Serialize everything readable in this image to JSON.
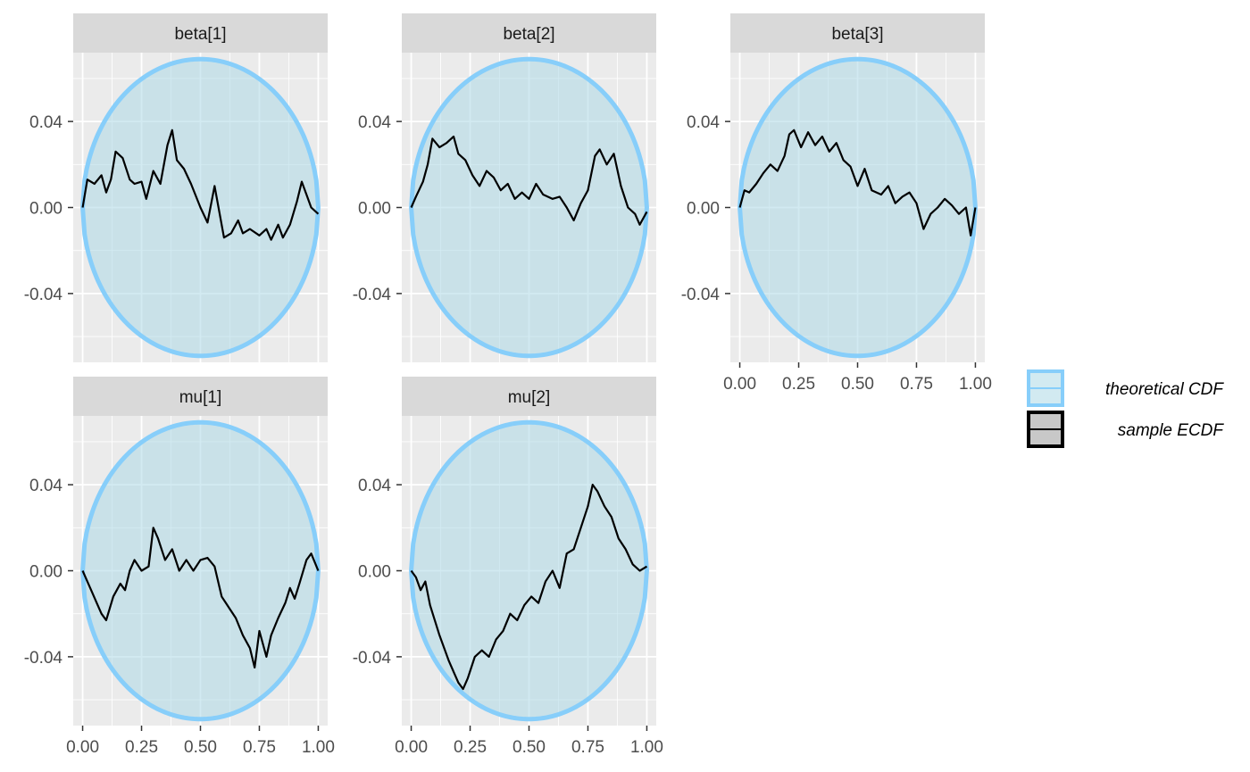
{
  "chart_data": {
    "type": "line",
    "layout": "facet-wrap 2 rows x 3 columns",
    "title": "",
    "xlabel": "",
    "ylabel": "",
    "xlim": [
      -0.04,
      1.04
    ],
    "ylim": [
      -0.072,
      0.072
    ],
    "x_ticks": [
      0.0,
      0.25,
      0.5,
      0.75,
      1.0
    ],
    "x_tick_labels": [
      "0.00",
      "0.25",
      "0.50",
      "0.75",
      "1.00"
    ],
    "y_ticks": [
      -0.04,
      0.0,
      0.04
    ],
    "y_tick_labels": [
      "-0.04",
      "0.00",
      "0.04"
    ],
    "grid": true,
    "colors": {
      "panel_bg": "#EBEBEB",
      "strip_bg": "#D9D9D9",
      "grid": "#FFFFFF",
      "band_fill": "#ADD8E6",
      "band_outline": "#87CEFA",
      "ecdf_line": "#000000"
    },
    "band": {
      "name": "theoretical CDF",
      "x": [
        0.0,
        0.025,
        0.05,
        0.1,
        0.2,
        0.3,
        0.4,
        0.5,
        0.6,
        0.7,
        0.8,
        0.9,
        0.95,
        0.975,
        1.0
      ],
      "upper": [
        0.0,
        0.024,
        0.033,
        0.044,
        0.057,
        0.064,
        0.068,
        0.069,
        0.068,
        0.064,
        0.057,
        0.044,
        0.033,
        0.024,
        0.0
      ],
      "lower": [
        0.0,
        -0.024,
        -0.033,
        -0.044,
        -0.057,
        -0.064,
        -0.068,
        -0.069,
        -0.068,
        -0.064,
        -0.057,
        -0.044,
        -0.033,
        -0.024,
        0.0
      ]
    },
    "facets": [
      {
        "name": "beta[1]",
        "series": {
          "name": "sample ECDF",
          "x": [
            0.0,
            0.02,
            0.05,
            0.08,
            0.1,
            0.12,
            0.14,
            0.17,
            0.2,
            0.22,
            0.25,
            0.27,
            0.3,
            0.33,
            0.36,
            0.38,
            0.4,
            0.43,
            0.46,
            0.5,
            0.53,
            0.56,
            0.6,
            0.63,
            0.66,
            0.68,
            0.71,
            0.75,
            0.78,
            0.8,
            0.83,
            0.85,
            0.88,
            0.91,
            0.93,
            0.95,
            0.97,
            1.0
          ],
          "y": [
            0.0,
            0.013,
            0.011,
            0.015,
            0.007,
            0.013,
            0.026,
            0.023,
            0.013,
            0.011,
            0.012,
            0.004,
            0.017,
            0.011,
            0.029,
            0.036,
            0.022,
            0.018,
            0.011,
            0.0,
            -0.007,
            0.01,
            -0.014,
            -0.012,
            -0.006,
            -0.012,
            -0.01,
            -0.013,
            -0.01,
            -0.015,
            -0.008,
            -0.014,
            -0.008,
            0.003,
            0.012,
            0.006,
            0.0,
            -0.003
          ]
        }
      },
      {
        "name": "beta[2]",
        "series": {
          "name": "sample ECDF",
          "x": [
            0.0,
            0.02,
            0.05,
            0.07,
            0.09,
            0.12,
            0.15,
            0.18,
            0.2,
            0.23,
            0.26,
            0.29,
            0.32,
            0.35,
            0.38,
            0.41,
            0.44,
            0.47,
            0.5,
            0.53,
            0.56,
            0.6,
            0.63,
            0.66,
            0.69,
            0.72,
            0.75,
            0.78,
            0.8,
            0.83,
            0.86,
            0.89,
            0.92,
            0.95,
            0.97,
            1.0
          ],
          "y": [
            0.0,
            0.005,
            0.012,
            0.02,
            0.032,
            0.028,
            0.03,
            0.033,
            0.025,
            0.022,
            0.015,
            0.01,
            0.017,
            0.014,
            0.008,
            0.011,
            0.004,
            0.007,
            0.004,
            0.011,
            0.006,
            0.004,
            0.005,
            0.0,
            -0.006,
            0.002,
            0.008,
            0.024,
            0.027,
            0.02,
            0.025,
            0.01,
            0.0,
            -0.003,
            -0.008,
            -0.002
          ]
        }
      },
      {
        "name": "beta[3]",
        "series": {
          "name": "sample ECDF",
          "x": [
            0.0,
            0.02,
            0.04,
            0.07,
            0.1,
            0.13,
            0.16,
            0.19,
            0.21,
            0.23,
            0.26,
            0.29,
            0.32,
            0.35,
            0.38,
            0.41,
            0.44,
            0.47,
            0.5,
            0.53,
            0.56,
            0.6,
            0.63,
            0.66,
            0.69,
            0.72,
            0.75,
            0.78,
            0.81,
            0.84,
            0.87,
            0.9,
            0.93,
            0.96,
            0.98,
            1.0
          ],
          "y": [
            0.0,
            0.008,
            0.007,
            0.011,
            0.016,
            0.02,
            0.017,
            0.024,
            0.034,
            0.036,
            0.028,
            0.035,
            0.029,
            0.033,
            0.026,
            0.03,
            0.022,
            0.019,
            0.01,
            0.018,
            0.008,
            0.006,
            0.01,
            0.002,
            0.005,
            0.007,
            0.002,
            -0.01,
            -0.003,
            0.0,
            0.004,
            0.001,
            -0.003,
            0.0,
            -0.013,
            0.0
          ]
        }
      },
      {
        "name": "mu[1]",
        "series": {
          "name": "sample ECDF",
          "x": [
            0.0,
            0.02,
            0.04,
            0.06,
            0.08,
            0.1,
            0.13,
            0.16,
            0.18,
            0.2,
            0.22,
            0.25,
            0.28,
            0.3,
            0.32,
            0.35,
            0.38,
            0.41,
            0.44,
            0.47,
            0.5,
            0.53,
            0.56,
            0.59,
            0.62,
            0.65,
            0.68,
            0.71,
            0.73,
            0.75,
            0.78,
            0.8,
            0.83,
            0.86,
            0.88,
            0.9,
            0.92,
            0.95,
            0.97,
            1.0
          ],
          "y": [
            0.0,
            -0.005,
            -0.01,
            -0.015,
            -0.02,
            -0.023,
            -0.012,
            -0.006,
            -0.009,
            0.0,
            0.005,
            0.0,
            0.002,
            0.02,
            0.015,
            0.005,
            0.01,
            0.0,
            0.005,
            0.0,
            0.005,
            0.006,
            0.002,
            -0.012,
            -0.017,
            -0.022,
            -0.03,
            -0.036,
            -0.045,
            -0.028,
            -0.04,
            -0.03,
            -0.022,
            -0.015,
            -0.008,
            -0.013,
            -0.006,
            0.005,
            0.008,
            0.0
          ]
        }
      },
      {
        "name": "mu[2]",
        "series": {
          "name": "sample ECDF",
          "x": [
            0.0,
            0.02,
            0.04,
            0.06,
            0.08,
            0.1,
            0.12,
            0.14,
            0.16,
            0.18,
            0.2,
            0.22,
            0.24,
            0.27,
            0.3,
            0.33,
            0.36,
            0.39,
            0.42,
            0.45,
            0.48,
            0.51,
            0.54,
            0.57,
            0.6,
            0.63,
            0.66,
            0.69,
            0.72,
            0.75,
            0.77,
            0.79,
            0.82,
            0.85,
            0.88,
            0.91,
            0.94,
            0.97,
            1.0
          ],
          "y": [
            0.0,
            -0.003,
            -0.009,
            -0.005,
            -0.016,
            -0.023,
            -0.03,
            -0.036,
            -0.042,
            -0.047,
            -0.052,
            -0.055,
            -0.05,
            -0.04,
            -0.037,
            -0.04,
            -0.032,
            -0.028,
            -0.02,
            -0.023,
            -0.016,
            -0.012,
            -0.015,
            -0.005,
            0.0,
            -0.008,
            0.008,
            0.01,
            0.02,
            0.03,
            0.04,
            0.037,
            0.03,
            0.025,
            0.015,
            0.01,
            0.003,
            0.0,
            0.002
          ]
        }
      }
    ],
    "legend": {
      "placement": "right",
      "entries": [
        {
          "label": "theoretical CDF",
          "key": "band"
        },
        {
          "label": "sample ECDF",
          "key": "line"
        }
      ]
    }
  }
}
